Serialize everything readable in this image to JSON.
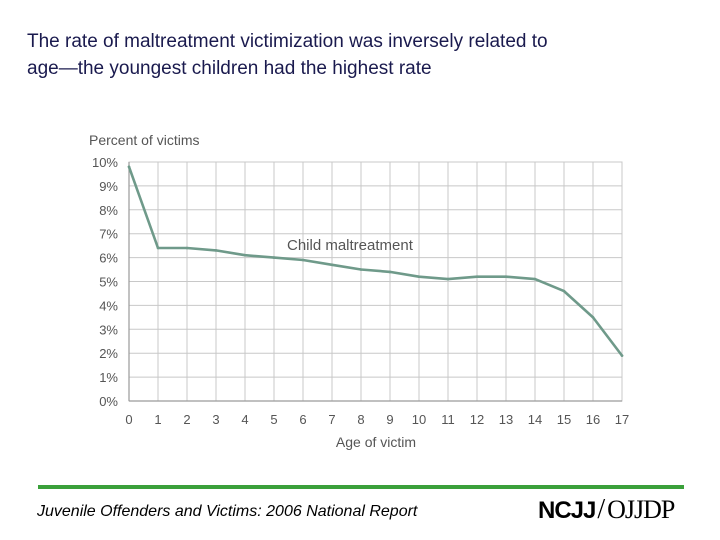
{
  "slide": {
    "title_line1": "The rate of maltreatment victimization was inversely related to",
    "title_line2": "age—the youngest children had the highest rate",
    "footer": "Juvenile Offenders and Victims: 2006 National Report",
    "logo_left": "NCJJ",
    "logo_slash": "/",
    "logo_right": "OJJDP",
    "accent_color": "#3aa03a"
  },
  "chart_data": {
    "type": "line",
    "title": "",
    "ylabel": "Percent of victims",
    "xlabel": "Age of victim",
    "x": [
      0,
      1,
      2,
      3,
      4,
      5,
      6,
      7,
      8,
      9,
      10,
      11,
      12,
      13,
      14,
      15,
      16,
      17
    ],
    "series": [
      {
        "name": "Child maltreatment",
        "values": [
          9.8,
          6.4,
          6.4,
          6.3,
          6.1,
          6.0,
          5.9,
          5.7,
          5.5,
          5.4,
          5.2,
          5.1,
          5.2,
          5.2,
          5.1,
          4.6,
          3.5,
          1.9
        ],
        "color": "#6f9a8a"
      }
    ],
    "xlim": [
      0,
      17
    ],
    "ylim": [
      0,
      10
    ],
    "y_ticks": [
      0,
      1,
      2,
      3,
      4,
      5,
      6,
      7,
      8,
      9,
      10
    ],
    "y_tick_labels": [
      "0%",
      "1%",
      "2%",
      "3%",
      "4%",
      "5%",
      "6%",
      "7%",
      "8%",
      "9%",
      "10%"
    ],
    "x_tick_labels": [
      "0",
      "1",
      "2",
      "3",
      "4",
      "5",
      "6",
      "7",
      "8",
      "9",
      "10",
      "11",
      "12",
      "13",
      "14",
      "15",
      "16",
      "17"
    ],
    "grid": true,
    "grid_color": "#c8c8c8",
    "axis_text_color": "#555555",
    "series_label_position": "above-line-mid"
  }
}
